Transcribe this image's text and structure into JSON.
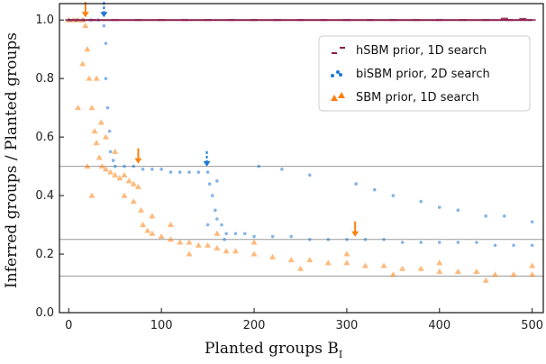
{
  "chart_data": {
    "type": "scatter",
    "title": "",
    "xlabel": "Planted groups B",
    "xlabel_subscript": "I",
    "ylabel": "Inferred groups / Planted groups",
    "xlim": [
      -10,
      512
    ],
    "ylim": [
      0,
      1.056
    ],
    "xticks": [
      0,
      100,
      200,
      300,
      400,
      500
    ],
    "xtick_labels": [
      "0",
      "100",
      "200",
      "300",
      "400",
      "500"
    ],
    "yticks": [
      0,
      0.2,
      0.4,
      0.6,
      0.8,
      1.0
    ],
    "ytick_labels": [
      "0.0",
      "0.2",
      "0.4",
      "0.6",
      "0.8",
      "1.0"
    ],
    "reference_lines": [
      0.5,
      0.25,
      0.125
    ],
    "legend_position": "upper-right",
    "grid": false,
    "series": [
      {
        "name": "hSBM prior, 1D search",
        "color": "#8b1a4a",
        "marker": "dash",
        "points": [
          [
            0,
            1
          ],
          [
            25,
            1
          ],
          [
            50,
            1
          ],
          [
            75,
            1
          ],
          [
            100,
            1
          ],
          [
            125,
            1
          ],
          [
            150,
            1
          ],
          [
            175,
            1
          ],
          [
            200,
            1
          ],
          [
            225,
            1
          ],
          [
            250,
            1
          ],
          [
            275,
            1
          ],
          [
            300,
            1
          ],
          [
            325,
            1
          ],
          [
            350,
            1
          ],
          [
            375,
            1
          ],
          [
            400,
            1
          ],
          [
            425,
            1
          ],
          [
            450,
            1
          ],
          [
            475,
            1
          ],
          [
            500,
            1
          ],
          [
            470,
            1.005
          ],
          [
            490,
            1.004
          ]
        ]
      },
      {
        "name": "biSBM prior, 2D search",
        "color": "#1f77d4",
        "marker": "circle",
        "points": [
          [
            0,
            1
          ],
          [
            8,
            1
          ],
          [
            16,
            1
          ],
          [
            24,
            1
          ],
          [
            32,
            1
          ],
          [
            38,
            0.98
          ],
          [
            40,
            0.92
          ],
          [
            40,
            0.8
          ],
          [
            42,
            0.7
          ],
          [
            44,
            0.62
          ],
          [
            45,
            0.55
          ],
          [
            48,
            0.52
          ],
          [
            50,
            0.5
          ],
          [
            60,
            0.5
          ],
          [
            70,
            0.5
          ],
          [
            80,
            0.49
          ],
          [
            90,
            0.49
          ],
          [
            100,
            0.49
          ],
          [
            110,
            0.48
          ],
          [
            120,
            0.48
          ],
          [
            130,
            0.48
          ],
          [
            140,
            0.48
          ],
          [
            150,
            0.48
          ],
          [
            152,
            0.44
          ],
          [
            155,
            0.4
          ],
          [
            158,
            0.35
          ],
          [
            160,
            0.32
          ],
          [
            165,
            0.3
          ],
          [
            170,
            0.27
          ],
          [
            180,
            0.27
          ],
          [
            190,
            0.27
          ],
          [
            200,
            0.26
          ],
          [
            220,
            0.26
          ],
          [
            240,
            0.26
          ],
          [
            260,
            0.25
          ],
          [
            280,
            0.25
          ],
          [
            300,
            0.25
          ],
          [
            320,
            0.25
          ],
          [
            340,
            0.25
          ],
          [
            360,
            0.24
          ],
          [
            380,
            0.24
          ],
          [
            400,
            0.24
          ],
          [
            420,
            0.24
          ],
          [
            440,
            0.24
          ],
          [
            460,
            0.23
          ],
          [
            480,
            0.23
          ],
          [
            500,
            0.23
          ],
          [
            205,
            0.5
          ],
          [
            230,
            0.49
          ],
          [
            260,
            0.47
          ],
          [
            310,
            0.44
          ],
          [
            330,
            0.42
          ],
          [
            350,
            0.4
          ],
          [
            380,
            0.38
          ],
          [
            400,
            0.36
          ],
          [
            420,
            0.35
          ],
          [
            450,
            0.33
          ],
          [
            470,
            0.33
          ],
          [
            500,
            0.31
          ],
          [
            160,
            0.45
          ],
          [
            150,
            0.3
          ],
          [
            168,
            0.25
          ]
        ]
      },
      {
        "name": "SBM prior, 1D search",
        "color": "#ff7f0e",
        "marker": "triangle",
        "points": [
          [
            0,
            1
          ],
          [
            5,
            1
          ],
          [
            10,
            1
          ],
          [
            15,
            1
          ],
          [
            18,
            0.98
          ],
          [
            20,
            0.9
          ],
          [
            22,
            0.8
          ],
          [
            25,
            0.7
          ],
          [
            28,
            0.62
          ],
          [
            30,
            0.58
          ],
          [
            33,
            0.53
          ],
          [
            36,
            0.5
          ],
          [
            40,
            0.49
          ],
          [
            45,
            0.48
          ],
          [
            50,
            0.47
          ],
          [
            55,
            0.46
          ],
          [
            60,
            0.47
          ],
          [
            65,
            0.45
          ],
          [
            70,
            0.44
          ],
          [
            75,
            0.43
          ],
          [
            78,
            0.35
          ],
          [
            80,
            0.3
          ],
          [
            85,
            0.28
          ],
          [
            90,
            0.27
          ],
          [
            100,
            0.26
          ],
          [
            110,
            0.25
          ],
          [
            120,
            0.24
          ],
          [
            130,
            0.24
          ],
          [
            140,
            0.23
          ],
          [
            150,
            0.23
          ],
          [
            160,
            0.22
          ],
          [
            170,
            0.21
          ],
          [
            180,
            0.21
          ],
          [
            200,
            0.2
          ],
          [
            220,
            0.19
          ],
          [
            240,
            0.18
          ],
          [
            260,
            0.18
          ],
          [
            280,
            0.17
          ],
          [
            300,
            0.17
          ],
          [
            320,
            0.16
          ],
          [
            340,
            0.16
          ],
          [
            360,
            0.15
          ],
          [
            380,
            0.15
          ],
          [
            400,
            0.14
          ],
          [
            420,
            0.14
          ],
          [
            440,
            0.14
          ],
          [
            460,
            0.13
          ],
          [
            480,
            0.13
          ],
          [
            500,
            0.13
          ],
          [
            20,
            0.5
          ],
          [
            25,
            0.4
          ],
          [
            30,
            0.8
          ],
          [
            35,
            0.65
          ],
          [
            40,
            0.6
          ],
          [
            50,
            0.55
          ],
          [
            60,
            0.4
          ],
          [
            70,
            0.38
          ],
          [
            90,
            0.33
          ],
          [
            110,
            0.3
          ],
          [
            130,
            0.2
          ],
          [
            160,
            0.27
          ],
          [
            200,
            0.24
          ],
          [
            250,
            0.15
          ],
          [
            300,
            0.2
          ],
          [
            350,
            0.13
          ],
          [
            400,
            0.17
          ],
          [
            450,
            0.11
          ],
          [
            500,
            0.16
          ],
          [
            10,
            0.7
          ],
          [
            15,
            0.85
          ]
        ]
      }
    ],
    "annotations": [
      {
        "type": "arrow",
        "x": 18,
        "y": 1.0,
        "style": "solid",
        "color": "#ff7f0e"
      },
      {
        "type": "arrow",
        "x": 38,
        "y": 1.0,
        "style": "dashed",
        "color": "#1f77d4"
      },
      {
        "type": "arrow",
        "x": 75,
        "y": 0.5,
        "style": "solid",
        "color": "#ff7f0e"
      },
      {
        "type": "arrow",
        "x": 149,
        "y": 0.49,
        "style": "dashed",
        "color": "#1f77d4"
      },
      {
        "type": "arrow",
        "x": 309,
        "y": 0.25,
        "style": "solid",
        "color": "#ff7f0e"
      }
    ]
  }
}
